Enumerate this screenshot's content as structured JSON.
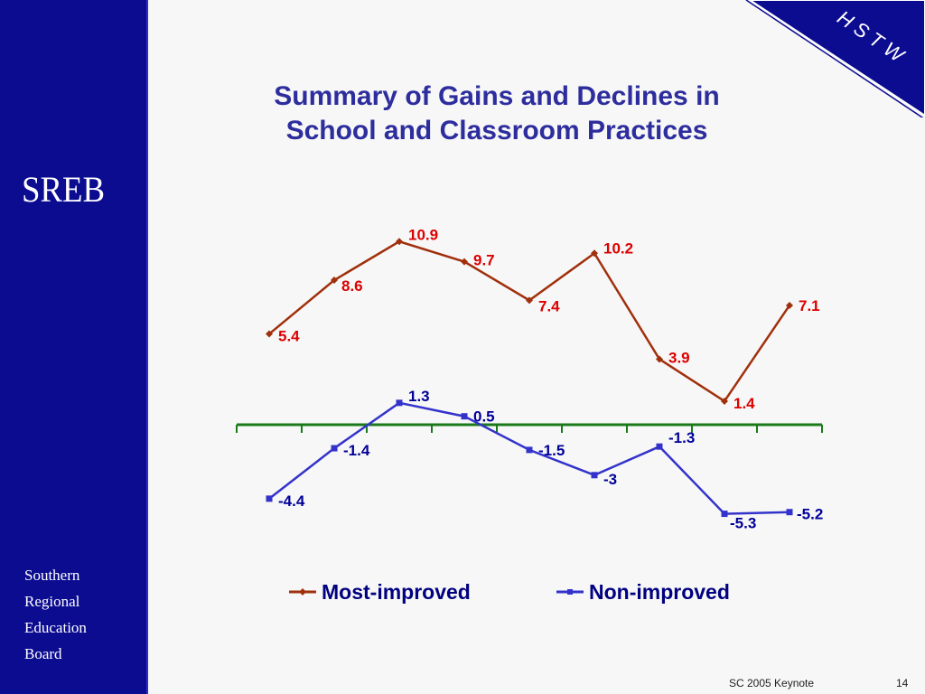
{
  "slide": {
    "title_line1": "Summary of Gains and Declines in",
    "title_line2": "School and Classroom Practices",
    "logo_text": "SREB",
    "org_line1": "Southern",
    "org_line2": "Regional",
    "org_line3": "Education",
    "org_line4": "Board",
    "corner_label": "HSTW",
    "footer_note": "SC 2005 Keynote",
    "page_number": "14"
  },
  "colors": {
    "sidebar": "#0c0c91",
    "title": "#2d2d9e",
    "most_improved": "#a0300c",
    "non_improved": "#3333cc",
    "most_label": "#dd0000",
    "non_label": "#000099",
    "axis": "#1a7a1a"
  },
  "chart_data": {
    "type": "line",
    "x": [
      1,
      2,
      3,
      4,
      5,
      6,
      7,
      8,
      9
    ],
    "series": [
      {
        "name": "Most-improved",
        "values": [
          5.4,
          8.6,
          10.9,
          9.7,
          7.4,
          10.2,
          3.9,
          1.4,
          7.1
        ]
      },
      {
        "name": "Non-improved",
        "values": [
          -4.4,
          -1.4,
          1.3,
          0.5,
          -1.5,
          -3,
          -1.3,
          -5.3,
          -5.2
        ]
      }
    ],
    "data_labels": [
      [
        "5.4",
        "8.6",
        "10.9",
        "9.7",
        "7.4",
        "10.2",
        "3.9",
        "1.4",
        "7.1"
      ],
      [
        "-4.4",
        "-1.4",
        "1.3",
        "0.5",
        "-1.5",
        "-3",
        "-1.3",
        "-5.3",
        "-5.2"
      ]
    ],
    "ylim": [
      -6,
      12
    ],
    "grid": false,
    "legend": "bottom",
    "x_axis_at": 0
  }
}
